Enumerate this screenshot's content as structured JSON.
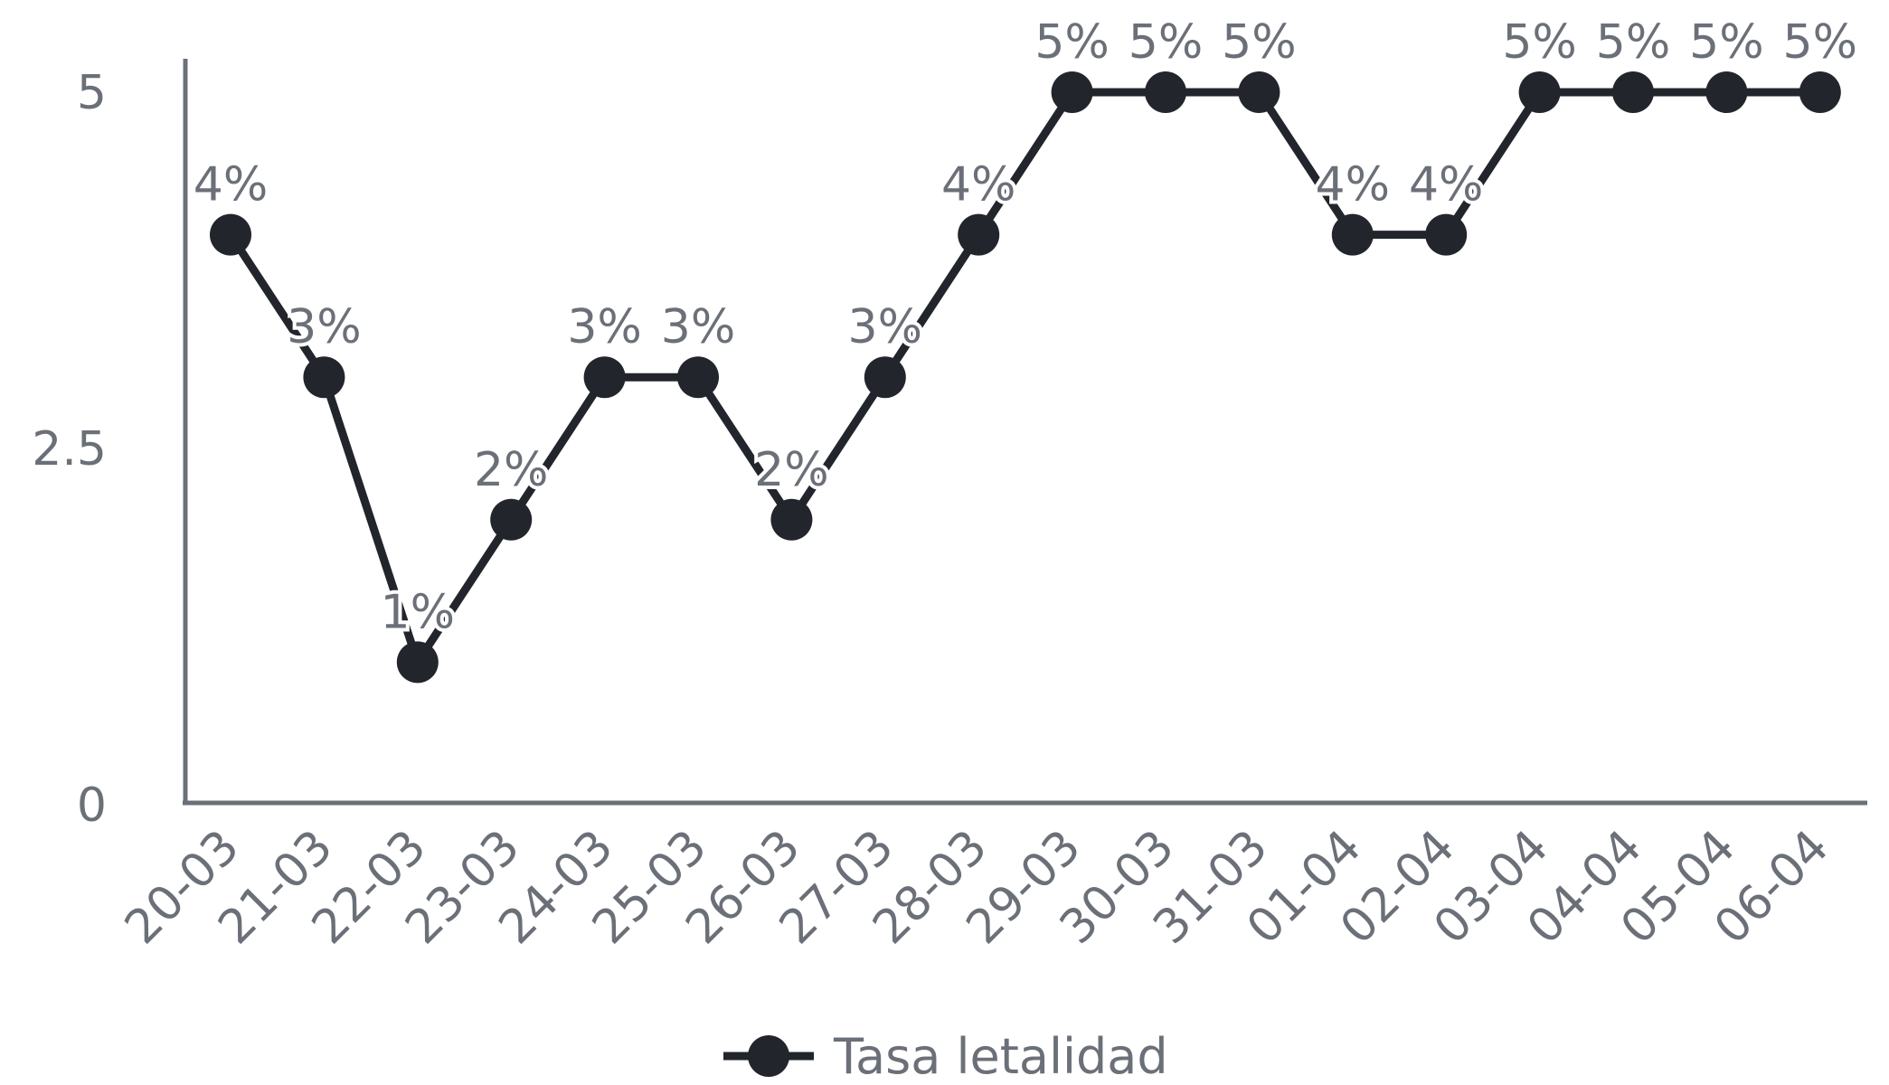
{
  "chart_data": {
    "type": "line",
    "title": "",
    "xlabel": "",
    "ylabel": "",
    "categories": [
      "20-03",
      "21-03",
      "22-03",
      "23-03",
      "24-03",
      "25-03",
      "26-03",
      "27-03",
      "28-03",
      "29-03",
      "30-03",
      "31-03",
      "01-04",
      "02-04",
      "03-04",
      "04-04",
      "05-04",
      "06-04"
    ],
    "series": [
      {
        "name": "Tasa letalidad",
        "values": [
          4,
          3,
          1,
          2,
          3,
          3,
          2,
          3,
          4,
          5,
          5,
          5,
          4,
          4,
          5,
          5,
          5,
          5
        ],
        "labels": [
          "4%",
          "3%",
          "1%",
          "2%",
          "3%",
          "3%",
          "2%",
          "3%",
          "4%",
          "5%",
          "5%",
          "5%",
          "4%",
          "4%",
          "5%",
          "5%",
          "5%",
          "5%"
        ],
        "color": "#22252b"
      }
    ],
    "ylim": [
      0,
      5.25
    ],
    "yticks": [
      0,
      2.5,
      5
    ],
    "ytick_labels": [
      "0",
      "2.5",
      "5"
    ],
    "grid": false,
    "legend": "bottom",
    "axis_color": "#6b7078"
  }
}
